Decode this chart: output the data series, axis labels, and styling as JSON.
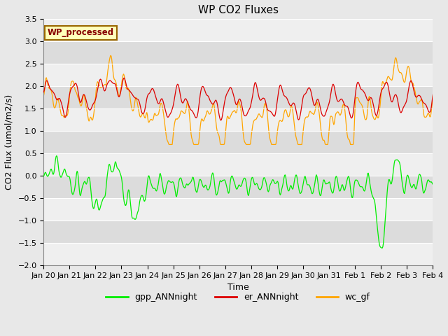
{
  "title": "WP CO2 Fluxes",
  "xlabel": "Time",
  "ylabel_str": "CO2 Flux (umol/m2/s)",
  "ylim": [
    -2.0,
    3.5
  ],
  "yticks": [
    -2.0,
    -1.5,
    -1.0,
    -0.5,
    0.0,
    0.5,
    1.0,
    1.5,
    2.0,
    2.5,
    3.0,
    3.5
  ],
  "xtick_labels": [
    "Jan 20",
    "Jan 21",
    "Jan 22",
    "Jan 23",
    "Jan 24",
    "Jan 25",
    "Jan 26",
    "Jan 27",
    "Jan 28",
    "Jan 29",
    "Jan 30",
    "Jan 31",
    "Feb 1",
    "Feb 2",
    "Feb 3",
    "Feb 4"
  ],
  "legend_label": "WP_processed",
  "line_colors": {
    "gpp_ANNnight": "#00ee00",
    "er_ANNnight": "#dd0000",
    "wc_gf": "#ffa500"
  },
  "background_color": "#dcdcdc",
  "grid_color": "#ffffff",
  "legend_box_color": "#ffffbb",
  "legend_box_edge": "#996600",
  "legend_text_color": "#880000",
  "title_fontsize": 11,
  "axis_label_fontsize": 9,
  "tick_fontsize": 8
}
